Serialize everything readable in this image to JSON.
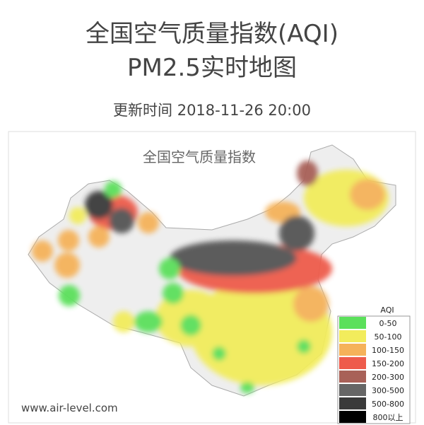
{
  "header": {
    "title_lines": [
      "全国空气质量指数(AQI)",
      "PM2.5实时地图"
    ],
    "timestamp": "更新时间 2018-11-26 20:00"
  },
  "map": {
    "title": "全国空气质量指数",
    "watermark": "www.air-level.com",
    "legend": {
      "title": "AQI",
      "items": [
        {
          "label": "0-50",
          "color": "#5be05b"
        },
        {
          "label": "50-100",
          "color": "#f2ec5c"
        },
        {
          "label": "100-150",
          "color": "#f5b25a"
        },
        {
          "label": "150-200",
          "color": "#ee5b4c"
        },
        {
          "label": "200-300",
          "color": "#a86158"
        },
        {
          "label": "300-500",
          "color": "#666666"
        },
        {
          "label": "500-800",
          "color": "#3a3a3a"
        },
        {
          "label": "800以上",
          "color": "#000000"
        }
      ]
    }
  }
}
